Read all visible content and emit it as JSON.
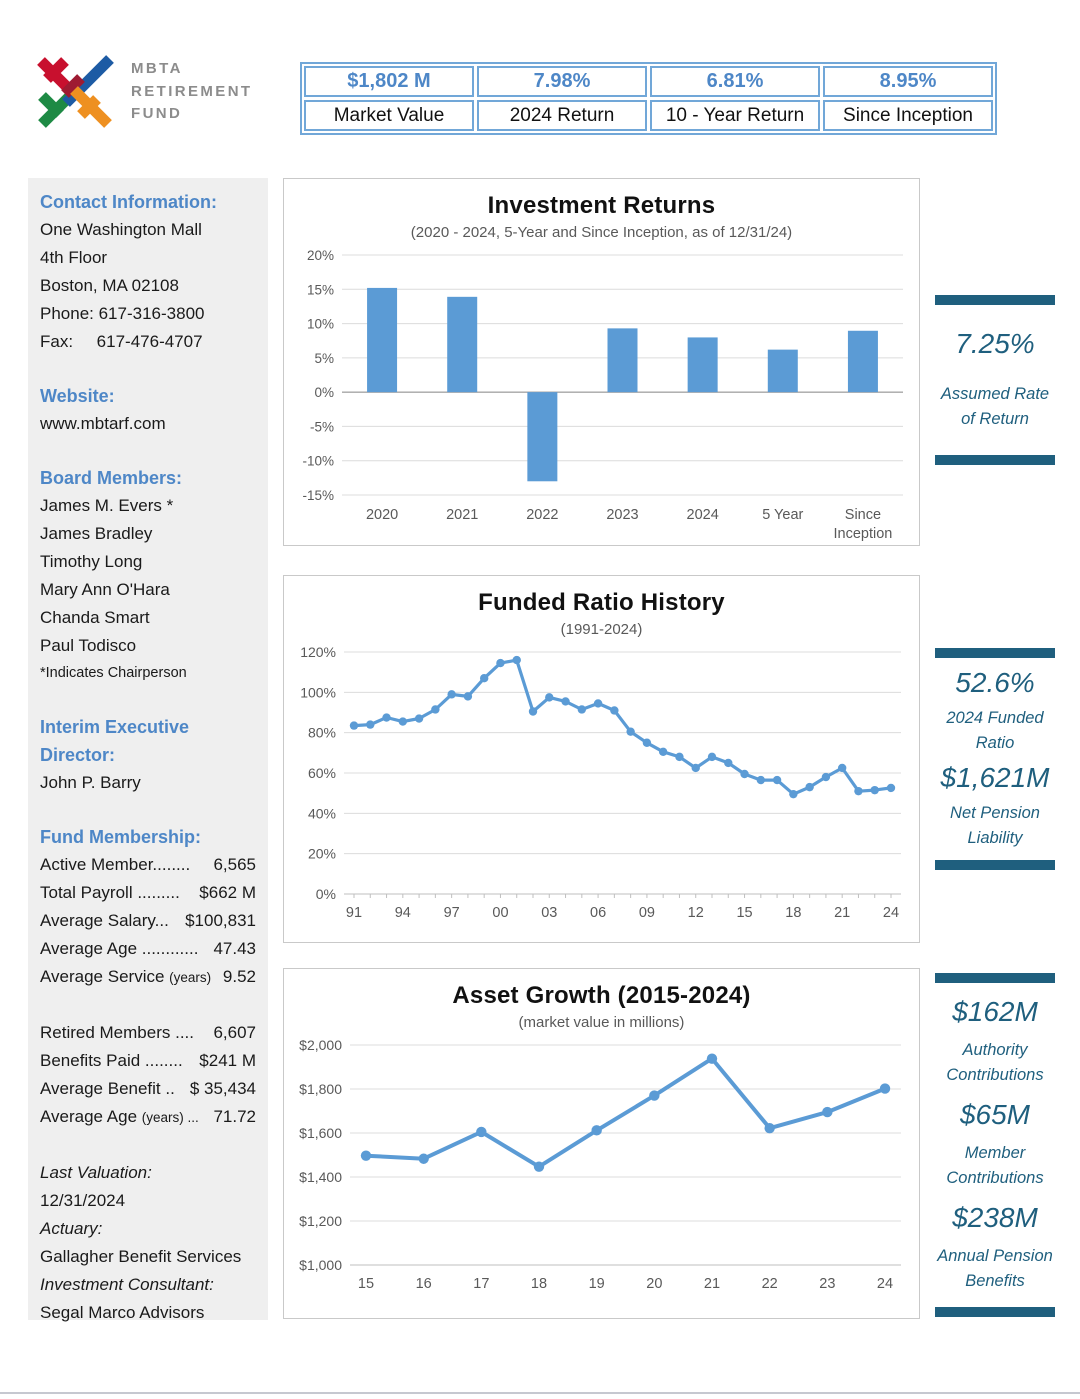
{
  "header": {
    "logo": {
      "line1": "MBTA",
      "line2": "RETIREMENT",
      "line3": "FUND"
    },
    "stats": [
      {
        "value": "$1,802 M",
        "label": "Market Value"
      },
      {
        "value": "7.98%",
        "label": "2024 Return"
      },
      {
        "value": "6.81%",
        "label": "10 - Year Return"
      },
      {
        "value": "8.95%",
        "label": "Since Inception"
      }
    ]
  },
  "sidebar": {
    "contact": {
      "heading": "Contact Information:",
      "lines": [
        "One Washington Mall",
        "4th Floor",
        "Boston, MA 02108",
        "Phone: 617-316-3800",
        "Fax:     617-476-4707"
      ]
    },
    "website": {
      "heading": "Website:",
      "lines": [
        "www.mbtarf.com"
      ]
    },
    "board": {
      "heading": "Board Members:",
      "members": [
        "James M. Evers *",
        "James Bradley",
        "Timothy Long",
        "Mary Ann O'Hara",
        "Chanda Smart",
        "Paul Todisco"
      ],
      "note": "*Indicates Chairperson"
    },
    "director": {
      "heading": "Interim Executive Director:",
      "lines": [
        "John P. Barry"
      ]
    },
    "membership": {
      "heading": "Fund Membership:",
      "groups": [
        {
          "rows": [
            {
              "label": "Active Member........",
              "value": "6,565"
            },
            {
              "label": "Total Payroll .........",
              "value": "$662 M"
            },
            {
              "label": "Average Salary...",
              "value": "$100,831"
            },
            {
              "label": "Average Age ............",
              "value": "47.43"
            },
            {
              "label": "Average Service",
              "suffix": "(years)",
              "value": "9.52"
            }
          ]
        },
        {
          "rows": [
            {
              "label": "Retired Members ....",
              "value": "6,607"
            },
            {
              "label": "Benefits Paid ........",
              "value": "$241 M"
            },
            {
              "label": "Average Benefit ..",
              "value": "$ 35,434"
            },
            {
              "label": "Average Age",
              "suffix": "(years) ...",
              "value": "71.72"
            }
          ]
        }
      ]
    },
    "valuation": [
      {
        "text": "Last Valuation:",
        "italic": true
      },
      {
        "text": "12/31/2024",
        "italic": false
      },
      {
        "text": "Actuary:",
        "italic": true
      },
      {
        "text": "Gallagher Benefit Services",
        "italic": false
      },
      {
        "text": "Investment Consultant:",
        "italic": true
      },
      {
        "text": "Segal Marco Advisors",
        "italic": false
      }
    ]
  },
  "callouts": [
    {
      "name": "assumed-rate",
      "pairs": [
        {
          "value": "7.25%",
          "label": "Assumed Rate of Return"
        }
      ]
    },
    {
      "name": "funded-ratio",
      "pairs": [
        {
          "value": "52.6%",
          "label": "2024 Funded Ratio"
        },
        {
          "value": "$1,621M",
          "label": "Net Pension Liability"
        }
      ]
    },
    {
      "name": "contributions",
      "pairs": [
        {
          "value": "$162M",
          "label": "Authority Contributions"
        },
        {
          "value": "$65M",
          "label": "Member Contributions"
        },
        {
          "value": "$238M",
          "label": "Annual Pension Benefits"
        }
      ]
    }
  ],
  "chart_data": [
    {
      "type": "bar",
      "title": "Investment Returns",
      "subtitle": "(2020 - 2024, 5-Year and Since Inception, as of 12/31/24)",
      "categories": [
        "2020",
        "2021",
        "2022",
        "2023",
        "2024",
        "5 Year",
        "Since Inception"
      ],
      "values": [
        15.2,
        13.9,
        -13.0,
        9.3,
        7.98,
        6.2,
        8.95
      ],
      "ylim": [
        -15,
        20
      ],
      "ytick_step": 5,
      "ytick_format": "percent",
      "grid": true,
      "color": "#5B9BD5"
    },
    {
      "type": "line",
      "title": "Funded Ratio History",
      "subtitle": "(1991-2024)",
      "x": [
        1991,
        1992,
        1993,
        1994,
        1995,
        1996,
        1997,
        1998,
        1999,
        2000,
        2001,
        2002,
        2003,
        2004,
        2005,
        2006,
        2007,
        2008,
        2009,
        2010,
        2011,
        2012,
        2013,
        2014,
        2015,
        2016,
        2017,
        2018,
        2019,
        2020,
        2021,
        2022,
        2023,
        2024
      ],
      "values": [
        83.5,
        84,
        87.5,
        85.5,
        87,
        91.5,
        99,
        98,
        107,
        114.5,
        116,
        90.5,
        97.5,
        95.5,
        91.5,
        94.5,
        91,
        80.5,
        75,
        70.5,
        68,
        62.5,
        68,
        65,
        59.5,
        56.5,
        56.5,
        49.5,
        53,
        58,
        62.5,
        51,
        51.5,
        52.6
      ],
      "ylim": [
        0,
        120
      ],
      "ytick_step": 20,
      "ytick_format": "percent",
      "xtick_step": 3,
      "xtick_labels": [
        "91",
        "94",
        "97",
        "00",
        "03",
        "06",
        "09",
        "12",
        "15",
        "18",
        "21",
        "24"
      ],
      "grid": true,
      "color": "#5B9BD5"
    },
    {
      "type": "line",
      "title": "Asset Growth (2015-2024)",
      "subtitle": "(market value in millions)",
      "x": [
        2015,
        2016,
        2017,
        2018,
        2019,
        2020,
        2021,
        2022,
        2023,
        2024
      ],
      "values": [
        1497,
        1483,
        1605,
        1447,
        1612,
        1770,
        1938,
        1622,
        1695,
        1802
      ],
      "ylim": [
        1000,
        2000
      ],
      "ytick_step": 200,
      "ytick_format": "dollar",
      "xtick_step": 1,
      "xtick_labels": [
        "15",
        "16",
        "17",
        "18",
        "19",
        "20",
        "21",
        "22",
        "23",
        "24"
      ],
      "grid": true,
      "color": "#5B9BD5"
    }
  ],
  "colors": {
    "accent_blue": "#4E87C7",
    "table_border": "#71A7D8",
    "chart_blue": "#5B9BD5",
    "callout_teal": "#1F5F7E",
    "sidebar_bg": "#EFEFEF",
    "logo_gray": "#8C8C8C",
    "logo_palette": {
      "red": "#C8102E",
      "maroon": "#9E1B32",
      "blue": "#1D5BA4",
      "green": "#1E8A44",
      "orange": "#EE9021"
    }
  }
}
